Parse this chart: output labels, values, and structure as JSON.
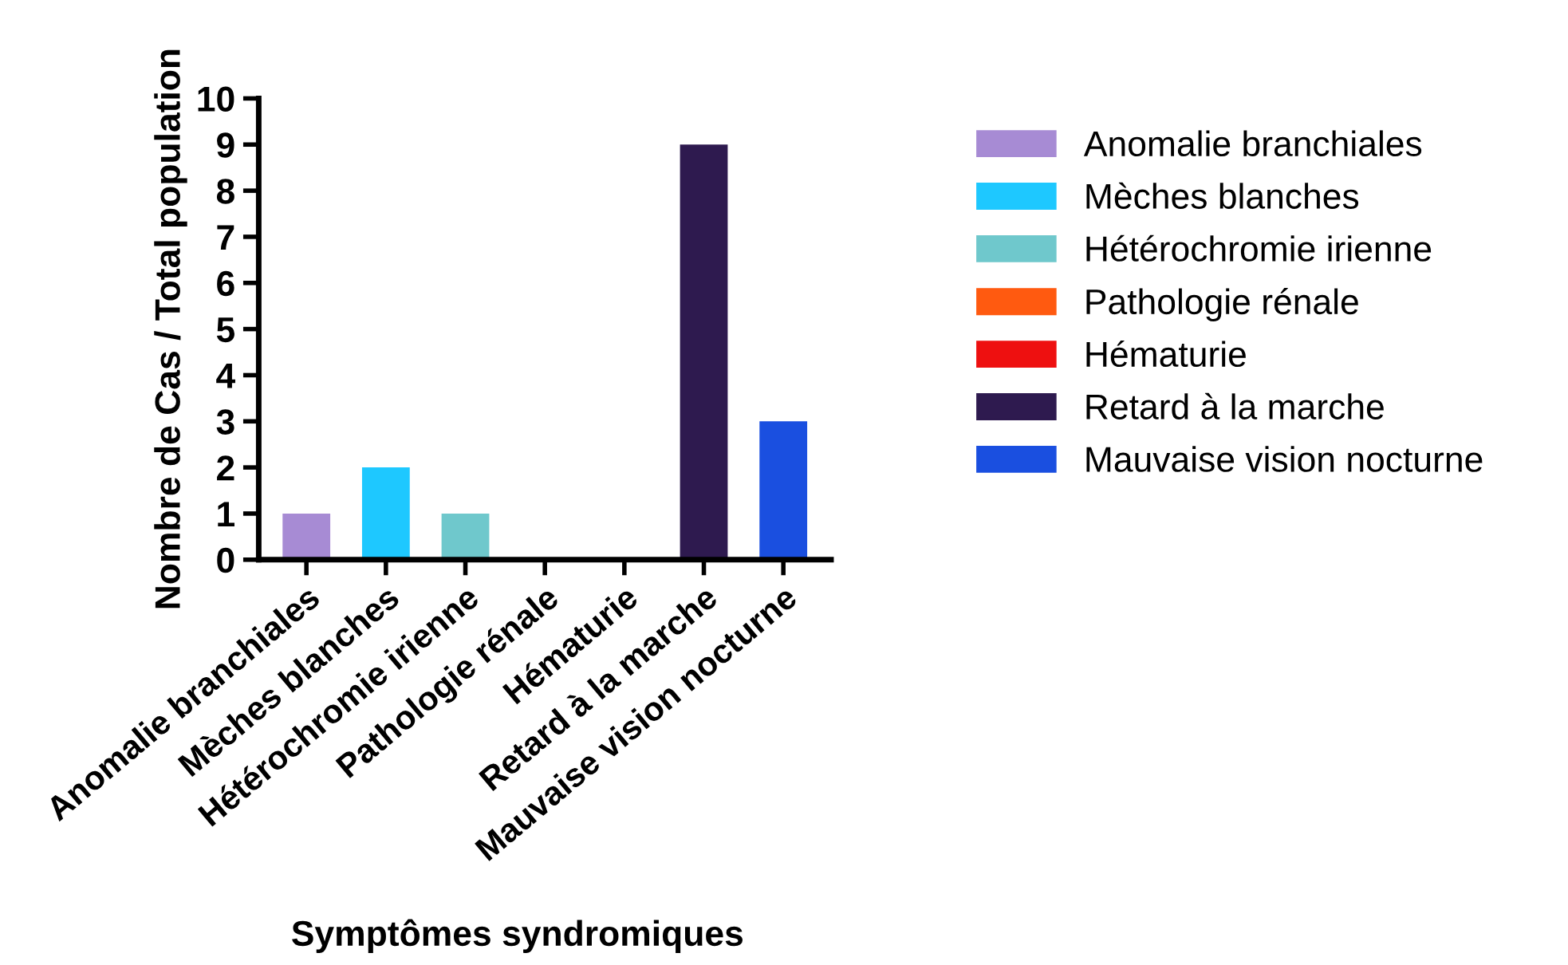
{
  "chart_data": {
    "type": "bar",
    "xlabel": "Symptômes syndromiques",
    "ylabel": "Nombre de Cas / Total population",
    "categories": [
      "Anomalie branchiales",
      "Mèches blanches",
      "Hétérochromie irienne",
      "Pathologie rénale",
      "Hématurie",
      "Retard à la marche",
      "Mauvaise vision nocturne"
    ],
    "series": [
      {
        "name": "Anomalie branchiales",
        "color": "#a78bd4",
        "values": [
          1,
          null,
          null,
          null,
          null,
          null,
          null
        ]
      },
      {
        "name": "Mèches blanches",
        "color": "#1ec8ff",
        "values": [
          null,
          2,
          null,
          null,
          null,
          null,
          null
        ]
      },
      {
        "name": "Hétérochromie irienne",
        "color": "#6fc8cc",
        "values": [
          null,
          null,
          1,
          null,
          null,
          null,
          null
        ]
      },
      {
        "name": "Pathologie rénale",
        "color": "#ff5a10",
        "values": [
          null,
          null,
          null,
          0,
          null,
          null,
          null
        ]
      },
      {
        "name": "Hématurie",
        "color": "#ee1010",
        "values": [
          null,
          null,
          null,
          null,
          0,
          null,
          null
        ]
      },
      {
        "name": "Retard à la marche",
        "color": "#2e1a4f",
        "values": [
          null,
          null,
          null,
          null,
          null,
          9,
          null
        ]
      },
      {
        "name": "Mauvaise vision nocturne",
        "color": "#1a4fe0",
        "values": [
          null,
          null,
          null,
          null,
          null,
          null,
          3
        ]
      }
    ],
    "ylim": [
      0,
      10
    ],
    "yticks": [
      0,
      1,
      2,
      3,
      4,
      5,
      6,
      7,
      8,
      9,
      10
    ],
    "grid": false,
    "legend": "right"
  }
}
